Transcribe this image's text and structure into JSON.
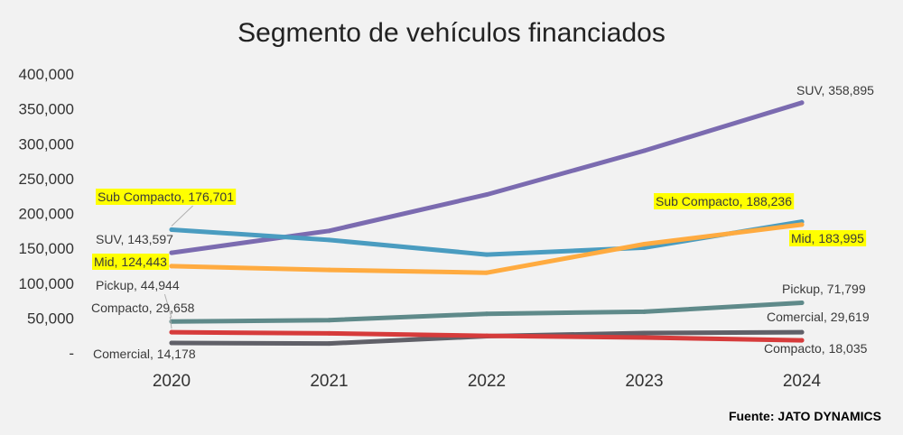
{
  "chart_data": {
    "type": "line",
    "title": "Segmento de vehículos financiados",
    "xlabel": "",
    "ylabel": "",
    "categories": [
      "2020",
      "2021",
      "2022",
      "2023",
      "2024"
    ],
    "ylim": [
      0,
      400000
    ],
    "yticks": [
      0,
      50000,
      100000,
      150000,
      200000,
      250000,
      300000,
      350000,
      400000
    ],
    "ytick_labels": [
      "-",
      "50,000",
      "100,000",
      "150,000",
      "200,000",
      "250,000",
      "300,000",
      "350,000",
      "400,000"
    ],
    "grid": false,
    "legend": "none",
    "source": "Fuente: JATO DYNAMICS",
    "series": [
      {
        "name": "SUV",
        "color": "#7b6bb0",
        "values": [
          143597,
          175000,
          227000,
          290000,
          358895
        ],
        "start_label": "SUV, 143,597",
        "end_label": "SUV, 358,895",
        "start_highlight": false,
        "end_highlight": false
      },
      {
        "name": "Sub Compacto",
        "color": "#4a9cc0",
        "values": [
          176701,
          162000,
          141000,
          151000,
          188236
        ],
        "start_label": "Sub Compacto, 176,701",
        "end_label": "Sub Compacto, 188,236",
        "start_highlight": true,
        "end_highlight": true
      },
      {
        "name": "Mid",
        "color": "#ffab40",
        "values": [
          124443,
          119000,
          115000,
          156000,
          183995
        ],
        "start_label": "Mid, 124,443",
        "end_label": "Mid, 183,995",
        "start_highlight": true,
        "end_highlight": true
      },
      {
        "name": "Pickup",
        "color": "#5f8a8a",
        "values": [
          44944,
          47000,
          56000,
          59000,
          71799
        ],
        "start_label": "Pickup, 44,944",
        "end_label": "Pickup, 71,799",
        "start_highlight": false,
        "end_highlight": false
      },
      {
        "name": "Comercial",
        "color": "#606068",
        "values": [
          14178,
          13500,
          24000,
          28500,
          29619
        ],
        "start_label": "Comercial, 14,178",
        "end_label": "Comercial, 29,619",
        "start_highlight": false,
        "end_highlight": false
      },
      {
        "name": "Compacto",
        "color": "#d63b3b",
        "values": [
          29658,
          28000,
          24500,
          22000,
          18035
        ],
        "start_label": "Compacto, 29,658",
        "end_label": "Compacto, 18,035",
        "start_highlight": false,
        "end_highlight": false
      }
    ]
  }
}
